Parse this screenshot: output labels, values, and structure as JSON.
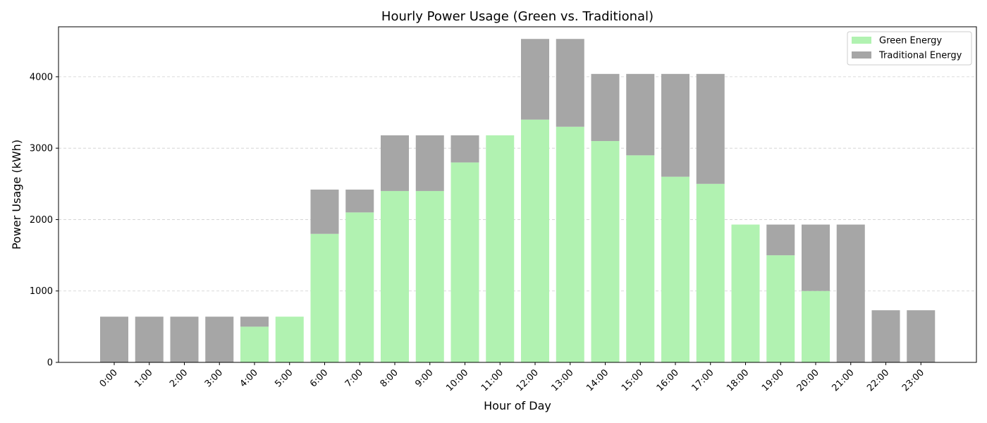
{
  "chart_data": {
    "type": "bar",
    "stacked": true,
    "title": "Hourly Power Usage (Green vs. Traditional)",
    "xlabel": "Hour of Day",
    "ylabel": "Power Usage (kWh)",
    "ylim": [
      0,
      4700
    ],
    "yticks": [
      0,
      1000,
      2000,
      3000,
      4000
    ],
    "grid": "y-dashed",
    "legend_position": "top-right",
    "categories": [
      "0:00",
      "1:00",
      "2:00",
      "3:00",
      "4:00",
      "5:00",
      "6:00",
      "7:00",
      "8:00",
      "9:00",
      "10:00",
      "11:00",
      "12:00",
      "13:00",
      "14:00",
      "15:00",
      "16:00",
      "17:00",
      "18:00",
      "19:00",
      "20:00",
      "21:00",
      "22:00",
      "23:00"
    ],
    "series": [
      {
        "name": "Green Energy",
        "color": "#b1f2b1",
        "values": [
          0,
          0,
          0,
          0,
          500,
          640,
          1800,
          2100,
          2400,
          2400,
          2800,
          3180,
          3400,
          3300,
          3100,
          2900,
          2600,
          2500,
          1930,
          1500,
          1000,
          0,
          0,
          0
        ]
      },
      {
        "name": "Traditional Energy",
        "color": "#a6a6a6",
        "values": [
          640,
          640,
          640,
          640,
          140,
          0,
          620,
          320,
          780,
          780,
          380,
          0,
          1130,
          1230,
          940,
          1140,
          1440,
          1540,
          0,
          430,
          930,
          1930,
          730,
          730
        ]
      }
    ]
  }
}
